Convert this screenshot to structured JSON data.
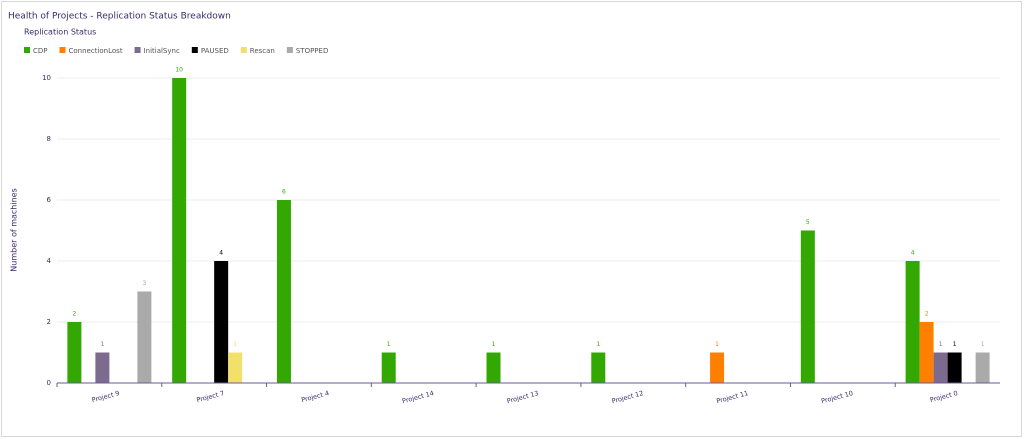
{
  "chart_data": {
    "type": "bar",
    "title": "Health of Projects - Replication Status Breakdown",
    "legend_title": "Replication Status",
    "y_label": "Number of machines",
    "categories": [
      "Project 9",
      "Project 7",
      "Project 4",
      "Project 14",
      "Project 13",
      "Project 12",
      "Project 11",
      "Project 10",
      "Project 0"
    ],
    "series": [
      {
        "name": "CDP",
        "color": "#33a802",
        "values": [
          2,
          10,
          6,
          1,
          1,
          1,
          0,
          5,
          4
        ]
      },
      {
        "name": "ConnectionLost",
        "color": "#ff8000",
        "values": [
          0,
          0,
          0,
          0,
          0,
          0,
          1,
          0,
          2
        ]
      },
      {
        "name": "InitialSync",
        "color": "#7d6b8f",
        "values": [
          1,
          0,
          0,
          0,
          0,
          0,
          0,
          0,
          1
        ]
      },
      {
        "name": "PAUSED",
        "color": "#000000",
        "values": [
          0,
          4,
          0,
          0,
          0,
          0,
          0,
          0,
          1
        ]
      },
      {
        "name": "Rescan",
        "color": "#f2e06a",
        "values": [
          0,
          1,
          0,
          0,
          0,
          0,
          0,
          0,
          0
        ]
      },
      {
        "name": "STOPPED",
        "color": "#aaaaaa",
        "values": [
          3,
          0,
          0,
          0,
          0,
          0,
          0,
          0,
          1
        ]
      }
    ],
    "ylim": [
      0,
      10
    ],
    "yticks": [
      0,
      2,
      4,
      6,
      8,
      10
    ],
    "grid": true
  }
}
